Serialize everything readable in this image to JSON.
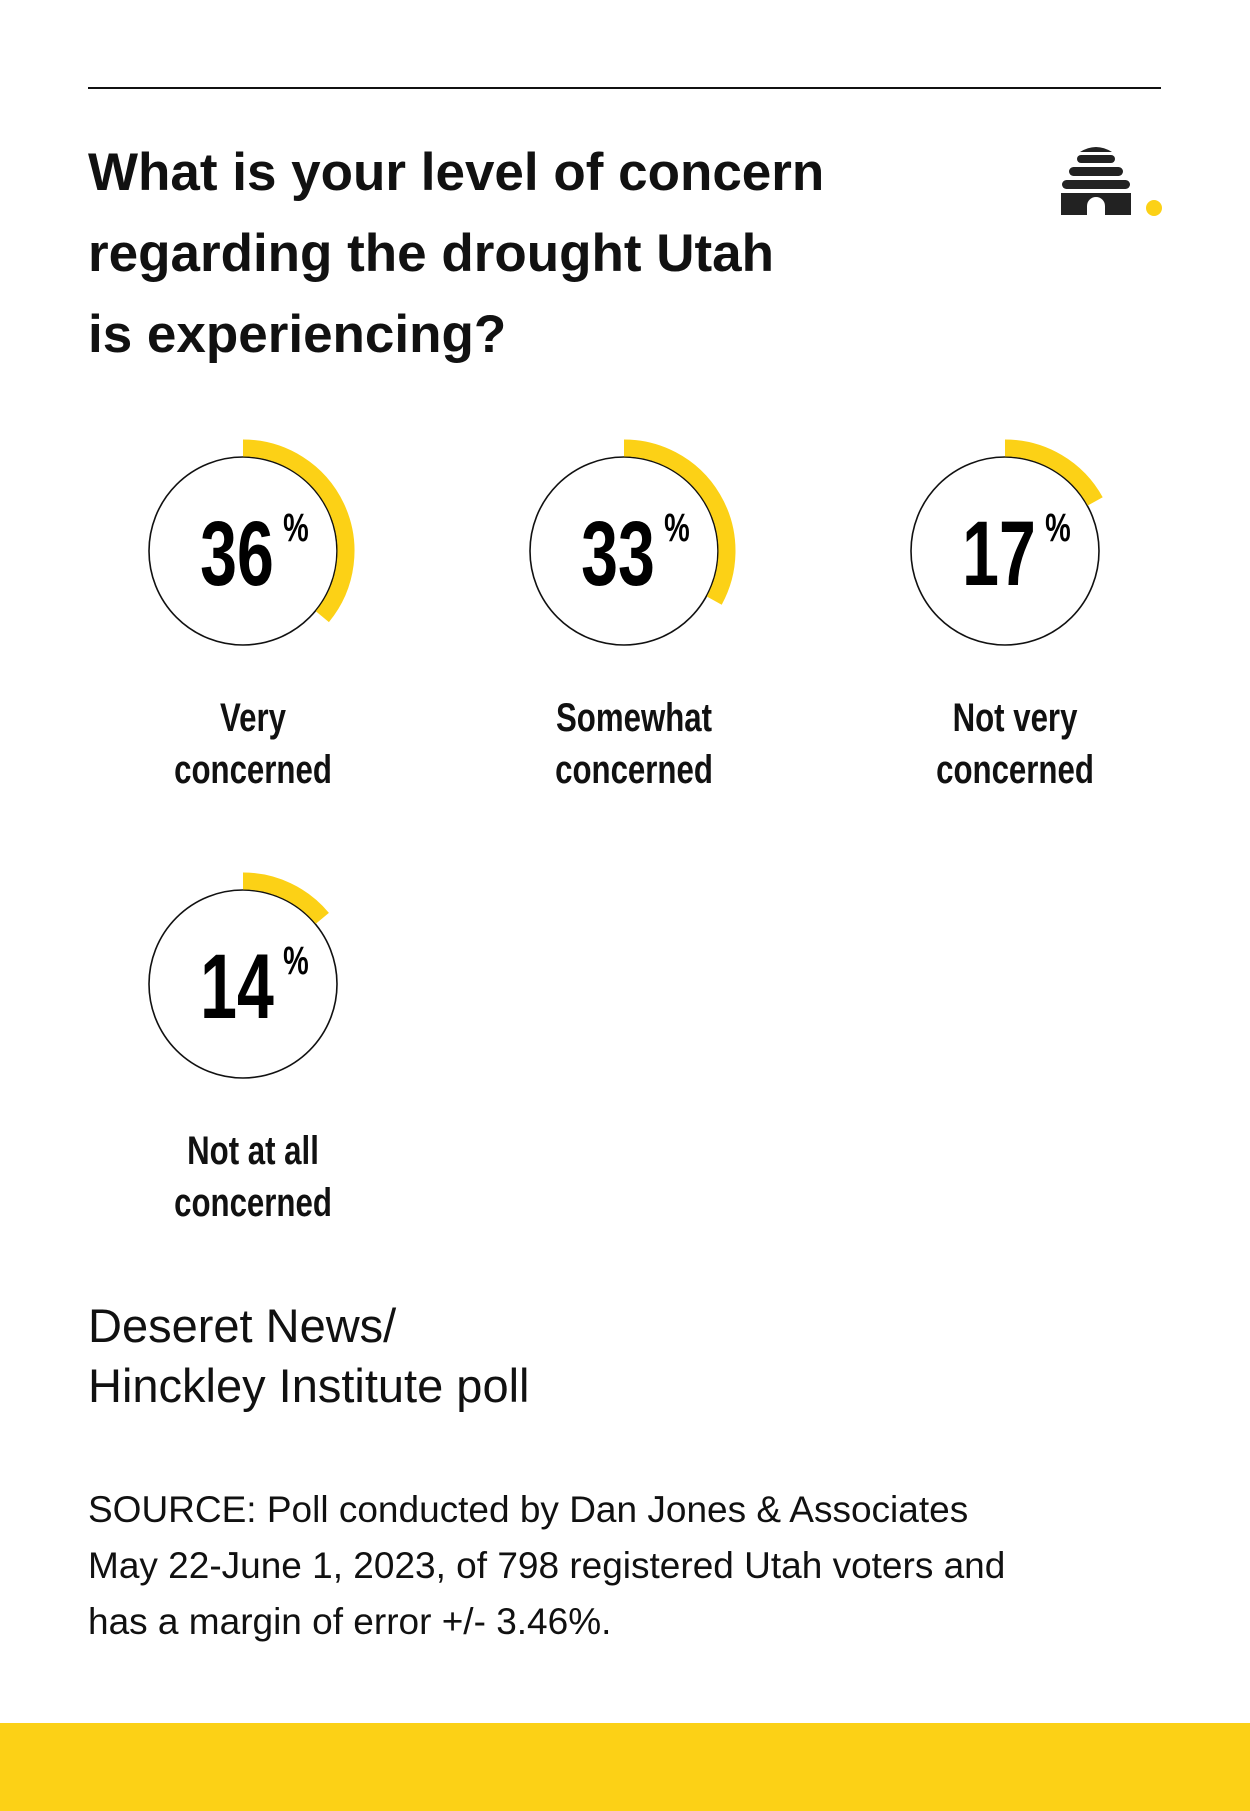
{
  "chart_data": {
    "type": "gauge",
    "title": "What is your level of concern\nregarding the drought Utah\nis experiencing?",
    "categories": [
      "Very concerned",
      "Somewhat concerned",
      "Not very concerned",
      "Not at all concerned"
    ],
    "values": [
      36,
      33,
      17,
      14
    ],
    "unit": "%",
    "color": "#fcd116",
    "subtitle": "Deseret News/\nHinckley Institute poll",
    "source": "SOURCE: Poll conducted by Dan Jones & Associates\nMay 22-June 1, 2023, of 798 registered Utah voters and\nhas a margin of error +/- 3.46%."
  }
}
